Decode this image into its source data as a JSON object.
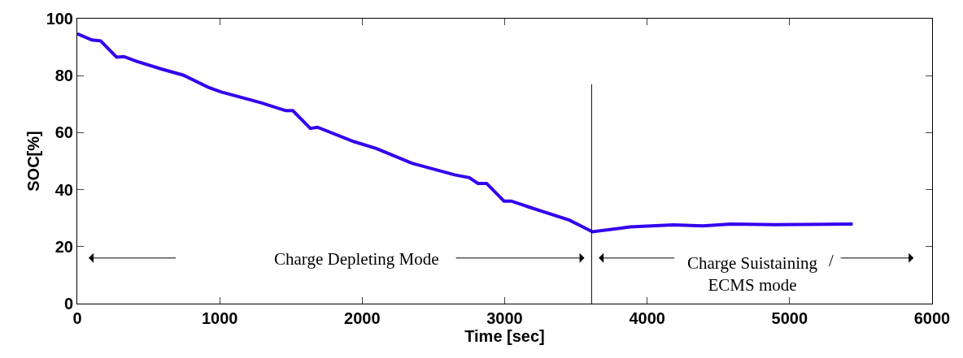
{
  "chart_data": {
    "type": "line",
    "xlabel": "Time [sec]",
    "ylabel": "SOC[%]",
    "xlim": [
      0,
      6000
    ],
    "xticks": [
      0,
      1000,
      2000,
      3000,
      4000,
      5000,
      6000
    ],
    "ylim": [
      0,
      100
    ],
    "yticks": [
      0,
      20,
      40,
      60,
      80,
      100
    ],
    "grid": false,
    "marker": "none",
    "line_style": "solid",
    "series": [
      {
        "color": "#3300ee",
        "x": [
          0,
          103,
          164,
          276,
          327,
          418,
          600,
          743,
          925,
          1007,
          1291,
          1463,
          1513,
          1636,
          1686,
          1939,
          2102,
          2346,
          2649,
          2752,
          2812,
          2873,
          2995,
          3046,
          3170,
          3454,
          3616,
          3880,
          4184,
          4389,
          4590,
          4894,
          5443
        ],
        "values": [
          94.7,
          92.5,
          92.2,
          86.5,
          86.7,
          85,
          82.2,
          80.2,
          75.8,
          74.3,
          70.5,
          67.7,
          67.7,
          61.5,
          61.9,
          56.9,
          54.4,
          49.3,
          45.2,
          44.2,
          42.2,
          42.2,
          36,
          36,
          33.9,
          29.3,
          25.2,
          26.9,
          27.6,
          27.3,
          27.9,
          27.7,
          27.9
        ]
      }
    ],
    "ref_lines": [
      {
        "axis": "x",
        "value": 3610,
        "color": "#000000",
        "line_style": "solid"
      }
    ],
    "annotations": [
      "Charge Depleting Mode",
      "Charge Suistaining\nECMS mode",
      "/"
    ]
  }
}
